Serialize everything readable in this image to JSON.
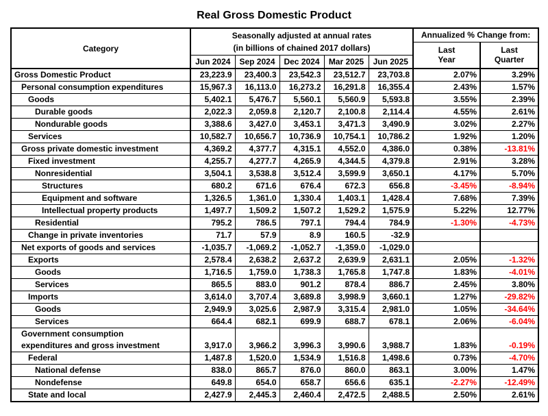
{
  "title": "Real Gross Domestic Product",
  "header": {
    "category": "Category",
    "rates_line1": "Seasonally adjusted at annual rates",
    "rates_line2": "(in billions of chained 2017 dollars)",
    "annualized": "Annualized % Change from:",
    "months": [
      "Jun 2024",
      "Sep 2024",
      "Dec 2024",
      "Mar 2025",
      "Jun 2025"
    ],
    "last_year": "Last\nYear",
    "last_quarter": "Last\nQuarter"
  },
  "colors": {
    "text": "#000000",
    "negative": "#ff0000",
    "border": "#000000",
    "background": "#ffffff"
  },
  "chart_data": {
    "type": "table",
    "title": "Real Gross Domestic Product",
    "units": "billions of chained 2017 dollars, seasonally adjusted at annual rates",
    "columns": [
      "Category",
      "Jun 2024",
      "Sep 2024",
      "Dec 2024",
      "Mar 2025",
      "Jun 2025",
      "Last Year",
      "Last Quarter"
    ],
    "rows": [
      {
        "label": "Gross Domestic Product",
        "indent": 0,
        "values": [
          "23,223.9",
          "23,400.3",
          "23,542.3",
          "23,512.7",
          "23,703.8"
        ],
        "pct": [
          "2.07%",
          "3.29%"
        ]
      },
      {
        "label": "Personal consumption expenditures",
        "indent": 1,
        "values": [
          "15,967.3",
          "16,113.0",
          "16,273.2",
          "16,291.8",
          "16,355.4"
        ],
        "pct": [
          "2.43%",
          "1.57%"
        ]
      },
      {
        "label": "Goods",
        "indent": 2,
        "values": [
          "5,402.1",
          "5,476.7",
          "5,560.1",
          "5,560.9",
          "5,593.8"
        ],
        "pct": [
          "3.55%",
          "2.39%"
        ]
      },
      {
        "label": "Durable goods",
        "indent": 3,
        "values": [
          "2,022.3",
          "2,059.8",
          "2,120.7",
          "2,100.8",
          "2,114.4"
        ],
        "pct": [
          "4.55%",
          "2.61%"
        ]
      },
      {
        "label": "Nondurable goods",
        "indent": 3,
        "values": [
          "3,388.6",
          "3,427.0",
          "3,453.1",
          "3,471.3",
          "3,490.9"
        ],
        "pct": [
          "3.02%",
          "2.27%"
        ]
      },
      {
        "label": "Services",
        "indent": 2,
        "values": [
          "10,582.7",
          "10,656.7",
          "10,736.9",
          "10,754.1",
          "10,786.2"
        ],
        "pct": [
          "1.92%",
          "1.20%"
        ]
      },
      {
        "label": "Gross private domestic investment",
        "indent": 1,
        "values": [
          "4,369.2",
          "4,377.7",
          "4,315.1",
          "4,552.0",
          "4,386.0"
        ],
        "pct": [
          "0.38%",
          "-13.81%"
        ]
      },
      {
        "label": "Fixed investment",
        "indent": 2,
        "values": [
          "4,255.7",
          "4,277.7",
          "4,265.9",
          "4,344.5",
          "4,379.8"
        ],
        "pct": [
          "2.91%",
          "3.28%"
        ]
      },
      {
        "label": "Nonresidential",
        "indent": 3,
        "values": [
          "3,504.1",
          "3,538.8",
          "3,512.4",
          "3,599.9",
          "3,650.1"
        ],
        "pct": [
          "4.17%",
          "5.70%"
        ]
      },
      {
        "label": "Structures",
        "indent": 4,
        "values": [
          "680.2",
          "671.6",
          "676.4",
          "672.3",
          "656.8"
        ],
        "pct": [
          "-3.45%",
          "-8.94%"
        ]
      },
      {
        "label": "Equipment and software",
        "indent": 4,
        "values": [
          "1,326.5",
          "1,361.0",
          "1,330.4",
          "1,403.1",
          "1,428.4"
        ],
        "pct": [
          "7.68%",
          "7.39%"
        ]
      },
      {
        "label": "Intellectual property products",
        "indent": 4,
        "values": [
          "1,497.7",
          "1,509.2",
          "1,507.2",
          "1,529.2",
          "1,575.9"
        ],
        "pct": [
          "5.22%",
          "12.77%"
        ]
      },
      {
        "label": "Residential",
        "indent": 3,
        "values": [
          "795.2",
          "786.5",
          "797.1",
          "794.4",
          "784.9"
        ],
        "pct": [
          "-1.30%",
          "-4.73%"
        ]
      },
      {
        "label": "Change in private inventories",
        "indent": 2,
        "values": [
          "71.7",
          "57.9",
          "8.9",
          "160.5",
          "-32.9"
        ],
        "pct": [
          "",
          ""
        ]
      },
      {
        "label": "Net exports of goods and services",
        "indent": 1,
        "values": [
          "-1,035.7",
          "-1,069.2",
          "-1,052.7",
          "-1,359.0",
          "-1,029.0"
        ],
        "pct": [
          "",
          ""
        ]
      },
      {
        "label": "Exports",
        "indent": 2,
        "values": [
          "2,578.4",
          "2,638.2",
          "2,637.2",
          "2,639.9",
          "2,631.1"
        ],
        "pct": [
          "2.05%",
          "-1.32%"
        ]
      },
      {
        "label": "Goods",
        "indent": 3,
        "values": [
          "1,716.5",
          "1,759.0",
          "1,738.3",
          "1,765.8",
          "1,747.8"
        ],
        "pct": [
          "1.83%",
          "-4.01%"
        ]
      },
      {
        "label": "Services",
        "indent": 3,
        "values": [
          "865.5",
          "883.0",
          "901.2",
          "878.4",
          "886.7"
        ],
        "pct": [
          "2.45%",
          "3.80%"
        ]
      },
      {
        "label": "Imports",
        "indent": 2,
        "values": [
          "3,614.0",
          "3,707.4",
          "3,689.8",
          "3,998.9",
          "3,660.1"
        ],
        "pct": [
          "1.27%",
          "-29.82%"
        ]
      },
      {
        "label": "Goods",
        "indent": 3,
        "values": [
          "2,949.9",
          "3,025.6",
          "2,987.9",
          "3,315.4",
          "2,981.0"
        ],
        "pct": [
          "1.05%",
          "-34.64%"
        ]
      },
      {
        "label": "Services",
        "indent": 3,
        "values": [
          "664.4",
          "682.1",
          "699.9",
          "688.7",
          "678.1"
        ],
        "pct": [
          "2.06%",
          "-6.04%"
        ]
      },
      {
        "label": "Government consumption\nexpenditures and gross investment",
        "indent": 1,
        "two_line": true,
        "values": [
          "3,917.0",
          "3,966.2",
          "3,996.3",
          "3,990.6",
          "3,988.7"
        ],
        "pct": [
          "1.83%",
          "-0.19%"
        ]
      },
      {
        "label": "Federal",
        "indent": 2,
        "values": [
          "1,487.8",
          "1,520.0",
          "1,534.9",
          "1,516.8",
          "1,498.6"
        ],
        "pct": [
          "0.73%",
          "-4.70%"
        ]
      },
      {
        "label": "National defense",
        "indent": 3,
        "values": [
          "838.0",
          "865.7",
          "876.0",
          "860.0",
          "863.1"
        ],
        "pct": [
          "3.00%",
          "1.47%"
        ]
      },
      {
        "label": "Nondefense",
        "indent": 3,
        "values": [
          "649.8",
          "654.0",
          "658.7",
          "656.6",
          "635.1"
        ],
        "pct": [
          "-2.27%",
          "-12.49%"
        ]
      },
      {
        "label": "State and local",
        "indent": 2,
        "values": [
          "2,427.9",
          "2,445.3",
          "2,460.4",
          "2,472.5",
          "2,488.5"
        ],
        "pct": [
          "2.50%",
          "2.61%"
        ]
      }
    ]
  }
}
